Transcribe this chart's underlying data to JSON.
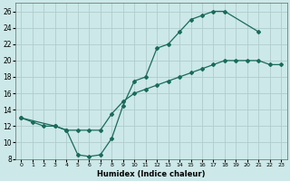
{
  "xlabel": "Humidex (Indice chaleur)",
  "bg_color": "#cce8e8",
  "grid_color": "#b0cccc",
  "line_color": "#1a6b5a",
  "xlim": [
    -0.5,
    23.5
  ],
  "ylim": [
    8,
    27
  ],
  "xticks": [
    0,
    1,
    2,
    3,
    4,
    5,
    6,
    7,
    8,
    9,
    10,
    11,
    12,
    13,
    14,
    15,
    16,
    17,
    18,
    19,
    20,
    21,
    22,
    23
  ],
  "yticks": [
    8,
    10,
    12,
    14,
    16,
    18,
    20,
    22,
    24,
    26
  ],
  "line1_x": [
    0,
    1,
    2,
    3,
    4,
    5,
    6,
    7,
    8,
    9,
    10,
    11,
    12,
    13,
    14,
    15,
    16,
    17,
    18,
    21
  ],
  "line1_y": [
    13,
    12.5,
    12,
    12,
    11.5,
    8.5,
    8.3,
    8.5,
    10.5,
    14.5,
    17.5,
    18,
    21.5,
    22,
    23.5,
    25,
    25.5,
    26,
    26,
    23.5
  ],
  "line2_x": [
    0,
    3,
    4,
    5,
    6,
    7,
    8,
    9,
    10,
    11,
    12,
    13,
    14,
    15,
    16,
    17,
    18,
    19,
    20,
    21,
    22,
    23
  ],
  "line2_y": [
    13,
    12,
    11.5,
    11.5,
    11.5,
    11.5,
    13.5,
    15,
    16,
    16.5,
    17,
    17.5,
    18,
    18.5,
    19,
    19.5,
    20,
    20,
    20,
    20,
    19.5,
    19.5
  ]
}
